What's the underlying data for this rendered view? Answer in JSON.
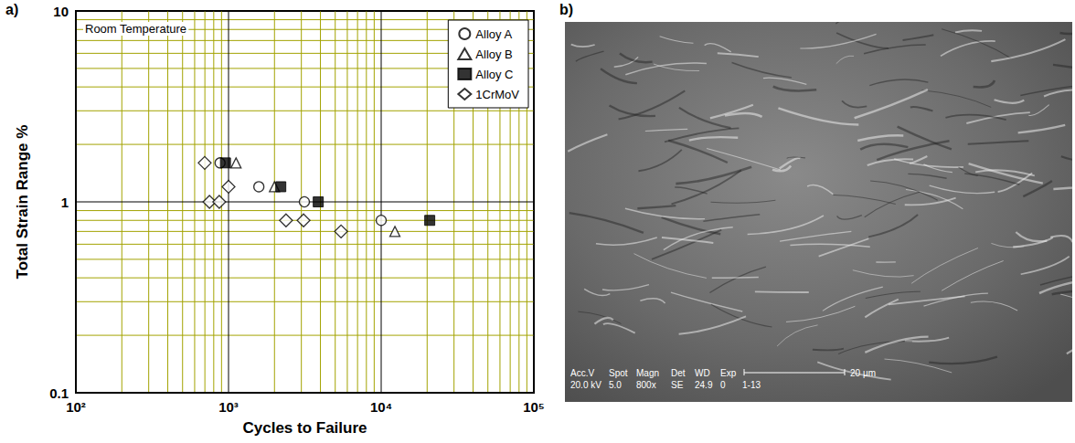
{
  "chart_data": {
    "type": "scatter",
    "x_label": "Cycles to Failure",
    "y_label": "Total Strain Range %",
    "annotations": [
      "Room Temperature"
    ],
    "log": true,
    "grid": true,
    "legend": "upper right",
    "xlim": [
      100,
      100000
    ],
    "xticks": [
      {
        "value": 100,
        "label": "10²"
      },
      {
        "value": 1000,
        "label": "10³"
      },
      {
        "value": 10000,
        "label": "10⁴"
      },
      {
        "value": 100000,
        "label": "10⁵"
      }
    ],
    "ylim": [
      0.1,
      10
    ],
    "yticks": [
      0.1,
      1,
      10
    ],
    "series": [
      {
        "name": "Alloy A",
        "marker": "circle-open",
        "color": "#000000",
        "x": [
          880,
          1580,
          3140,
          10000
        ],
        "values": [
          1.6,
          1.2,
          1.0,
          0.8
        ]
      },
      {
        "name": "Alloy B",
        "marker": "triangle-open",
        "color": "#000000",
        "x": [
          1120,
          2000,
          12300
        ],
        "values": [
          1.6,
          1.2,
          0.7
        ]
      },
      {
        "name": "Alloy C",
        "marker": "square",
        "color": "#000000",
        "x": [
          955,
          2200,
          3870,
          20800
        ],
        "values": [
          1.6,
          1.2,
          1.0,
          0.8
        ]
      },
      {
        "name": "1CrMoV",
        "marker": "diamond-open",
        "color": "#000000",
        "x": [
          698,
          750,
          870,
          1000,
          2380,
          3100,
          5460
        ],
        "values": [
          1.6,
          1.0,
          1.0,
          1.2,
          0.8,
          0.8,
          0.7
        ]
      }
    ]
  },
  "figure": {
    "panel_labels": [
      "a)",
      "b)"
    ]
  },
  "micrograph": {
    "info_bar": [
      {
        "head": "Acc.V",
        "value": "20.0 kV"
      },
      {
        "head": "Spot",
        "value": "5.0"
      },
      {
        "head": "Magn",
        "value": "800x"
      },
      {
        "head": "Det",
        "value": "SE"
      },
      {
        "head": "WD",
        "value": "24.9"
      },
      {
        "head": "Exp",
        "value": "0"
      }
    ],
    "id": "1-13",
    "scale_bar": "20 µm"
  }
}
